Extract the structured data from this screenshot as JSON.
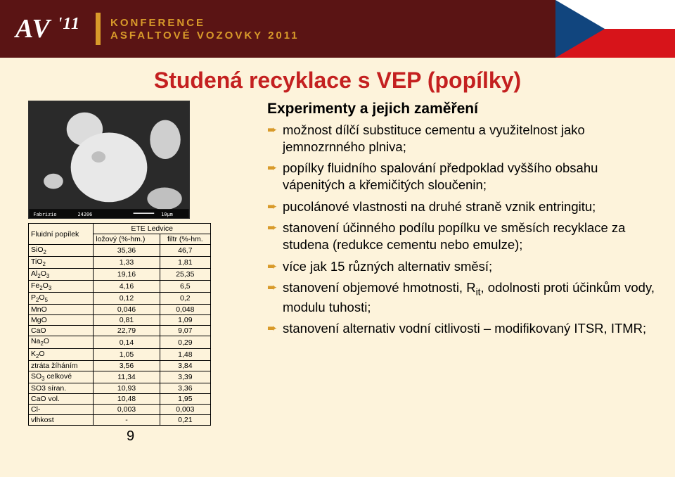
{
  "header": {
    "logo_main": "AV",
    "logo_year": "'11",
    "conf_line1": "KONFERENCE",
    "conf_line2": "ASFALTOVÉ VOZOVKY 2011",
    "colors": {
      "bg": "#5a1414",
      "accent": "#d89a2a",
      "white": "#ffffff"
    },
    "flag": {
      "white": "#ffffff",
      "red": "#d7141a",
      "blue": "#11457e"
    }
  },
  "title": "Studená recyklace s VEP (popílky)",
  "title_color": "#c42020",
  "page_number": "9",
  "sem_image": {
    "bg": "#2a2a2a",
    "particle_fill": "#e8e8e8",
    "shadow": "#555555"
  },
  "table": {
    "header": {
      "col1": "Fluidní popílek",
      "col2": "ETE Ledvice"
    },
    "subheader": {
      "c2a": "ložový (%-hm.)",
      "c2b": "filtr (%-hm."
    },
    "rows": [
      {
        "label": "SiO2",
        "sub": "2",
        "a": "35,36",
        "b": "46,7"
      },
      {
        "label": "TiO2",
        "sub": "2",
        "a": "1,33",
        "b": "1,81"
      },
      {
        "label": "Al2O3",
        "sub": "2,3",
        "a": "19,16",
        "b": "25,35"
      },
      {
        "label": "Fe2O3",
        "sub": "2,3",
        "a": "4,16",
        "b": "6,5"
      },
      {
        "label": "P2O5",
        "sub": "2,5",
        "a": "0,12",
        "b": "0,2"
      },
      {
        "label": "MnO",
        "sub": "",
        "a": "0,046",
        "b": "0,048"
      },
      {
        "label": "MgO",
        "sub": "",
        "a": "0,81",
        "b": "1,09"
      },
      {
        "label": "CaO",
        "sub": "",
        "a": "22,79",
        "b": "9,07"
      },
      {
        "label": "Na2O",
        "sub": "2",
        "a": "0,14",
        "b": "0,29"
      },
      {
        "label": "K2O",
        "sub": "2",
        "a": "1,05",
        "b": "1,48"
      },
      {
        "label": "ztráta žíháním",
        "sub": "",
        "a": "3,56",
        "b": "3,84"
      },
      {
        "label": "SO3 celkové",
        "sub": "3",
        "a": "11,34",
        "b": "3,39"
      },
      {
        "label": "SO3 síran.",
        "sub": "",
        "a": "10,93",
        "b": "3,36"
      },
      {
        "label": "CaO vol.",
        "sub": "",
        "a": "10,48",
        "b": "1,95"
      },
      {
        "label": "Cl-",
        "sub": "",
        "a": "0,003",
        "b": "0,003"
      },
      {
        "label": "vlhkost",
        "sub": "",
        "a": "-",
        "b": "0,21"
      }
    ]
  },
  "right": {
    "subtitle": "Experimenty a jejich zaměření",
    "bullets": [
      "možnost dílčí substituce cementu a využitelnost jako jemnozrnného plniva;",
      "popílky fluidního spalování předpoklad vyššího obsahu vápenitých a křemičitých sloučenin;",
      "pucolánové vlastnosti na druhé straně vznik entringitu;",
      "stanovení účinného podílu popílku ve směsích recyklace za studena (redukce cementu nebo emulze);",
      "více jak 15 různých alternativ směsí;",
      "stanovení objemové hmotnosti, Rit, odolnosti proti účinkům vody, modulu tuhosti;",
      "stanovení alternativ vodní citlivosti – modifikovaný ITSR, ITMR;"
    ]
  }
}
